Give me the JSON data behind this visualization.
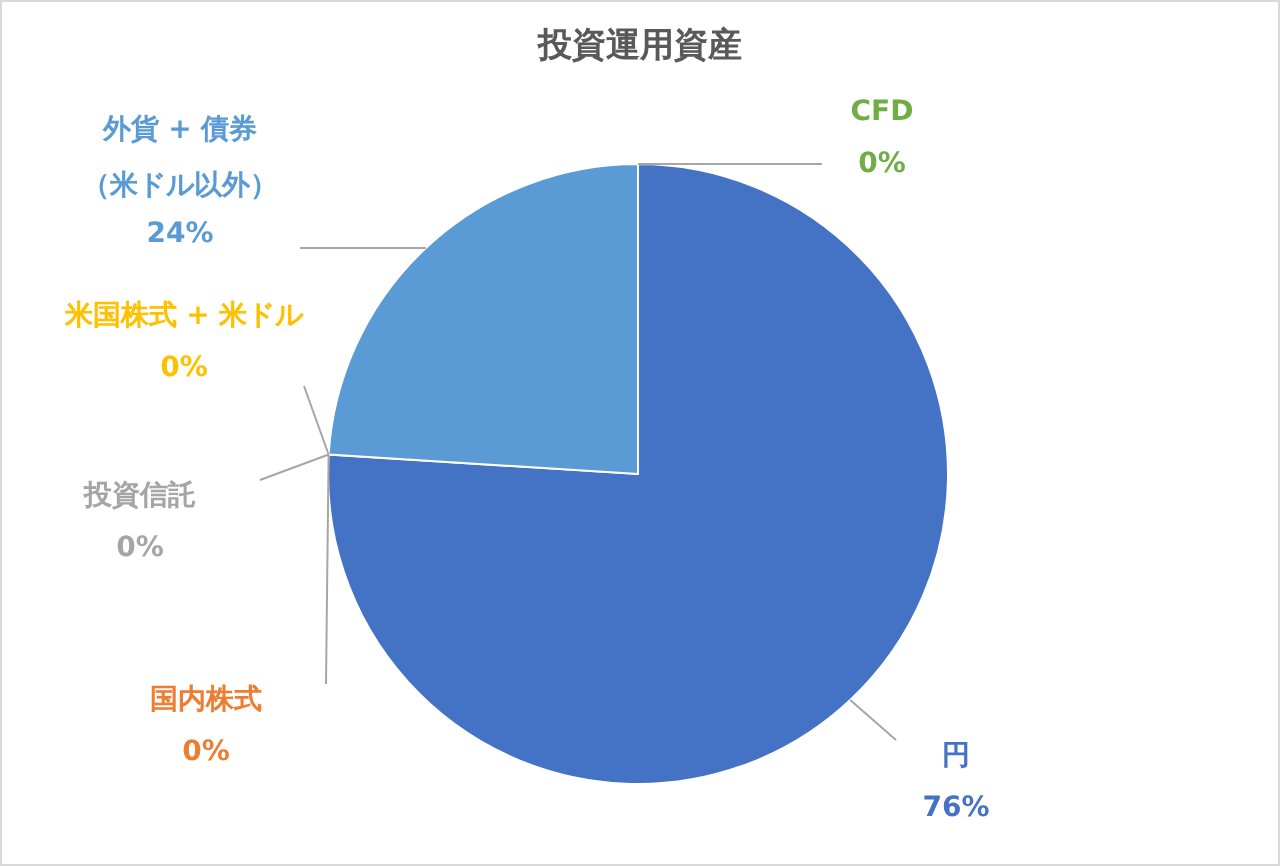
{
  "chart_data": {
    "type": "pie",
    "title": "投資運用資産",
    "categories": [
      "円",
      "国内株式",
      "投資信託",
      "米国株式 + 米ドル",
      "外貨 + 債券（米ドル以外）",
      "CFD"
    ],
    "values": [
      76,
      0,
      0,
      0,
      24,
      0
    ],
    "value_labels": [
      "76%",
      "0%",
      "0%",
      "0%",
      "24%",
      "0%"
    ],
    "colors": [
      "#4472c4",
      "#ed7d31",
      "#a5a5a5",
      "#ffc000",
      "#5b9bd5",
      "#70ad47"
    ],
    "legend": false
  }
}
